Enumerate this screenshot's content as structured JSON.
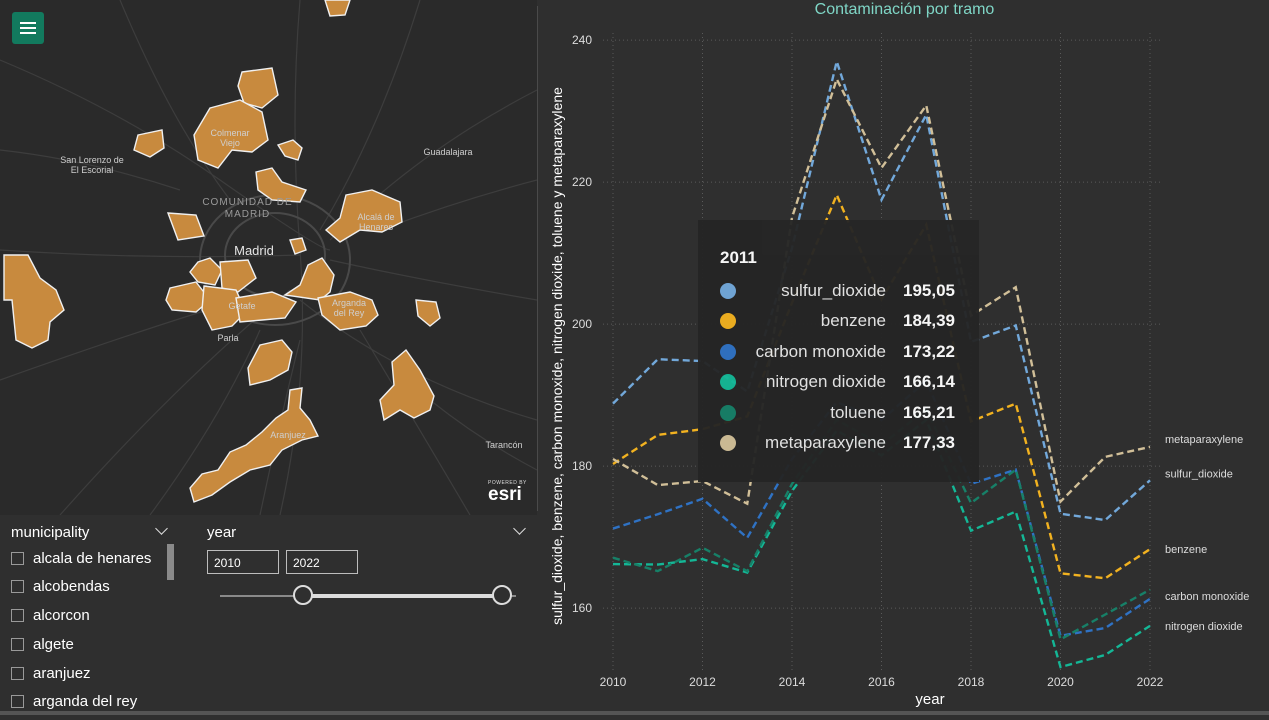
{
  "colors": {
    "accent": "#127a5e",
    "municipality_fill": "#c88a3e",
    "sulfur_dioxide": "#72a8da",
    "benzene": "#f2b220",
    "carbon_monoxide": "#2f72c4",
    "nitrogen_dioxide": "#14b796",
    "toluene": "#178068",
    "metaparaxylene": "#d1bf98"
  },
  "map": {
    "menu_icon": "hamburger-menu-icon",
    "labels": {
      "san_lorenzo": "San Lorenzo de El Escorial",
      "colmenar": "Colmenar Viejo",
      "region": "COMUNIDAD DE MADRID",
      "madrid": "Madrid",
      "guadalajara": "Guadalajara",
      "alcala": "Alcalá de Henares",
      "getafe": "Getafe",
      "parla": "Parla",
      "arganda": "Arganda del Rey",
      "aranjuez": "Aranjuez",
      "tarancon": "Tarancón"
    },
    "attribution": {
      "powered_by": "POWERED BY",
      "brand": "esri"
    }
  },
  "filters": {
    "municipality": {
      "title": "municipality",
      "items": [
        "alcala de henares",
        "alcobendas",
        "alcorcon",
        "algete",
        "aranjuez",
        "arganda del rey"
      ]
    },
    "year": {
      "title": "year",
      "from": "2010",
      "to": "2022",
      "slider_from_fraction": 0,
      "slider_to_fraction": 1
    }
  },
  "chart_title": "Contaminación por tramo",
  "tooltip": {
    "header": "2011",
    "rows": [
      {
        "name": "sulfur_dioxide",
        "value": "195,05",
        "color": "#72a8da"
      },
      {
        "name": "benzene",
        "value": "184,39",
        "color": "#f2b220"
      },
      {
        "name": "carbon monoxide",
        "value": "173,22",
        "color": "#2f72c4"
      },
      {
        "name": "nitrogen dioxide",
        "value": "166,14",
        "color": "#14b796"
      },
      {
        "name": "toluene",
        "value": "165,21",
        "color": "#178068"
      },
      {
        "name": "metaparaxylene",
        "value": "177,33",
        "color": "#d1bf98"
      }
    ]
  },
  "chart_data": {
    "type": "line",
    "title": "Contaminación por tramo",
    "xlabel": "year",
    "ylabel": "sulfur_dioxide, benzene, carbon monoxide, nitrogen dioxide, toluene y metaparaxylene",
    "x": [
      2010,
      2011,
      2012,
      2013,
      2014,
      2015,
      2016,
      2017,
      2018,
      2019,
      2020,
      2021,
      2022
    ],
    "x_ticks": [
      2010,
      2012,
      2014,
      2016,
      2018,
      2020,
      2022
    ],
    "y_ticks": [
      160,
      180,
      200,
      220,
      240
    ],
    "ylim": [
      151,
      241
    ],
    "xlim": [
      2010,
      2022
    ],
    "grid": true,
    "line_style": "dashed",
    "series": [
      {
        "name": "sulfur_dioxide",
        "label": "sulfur_dioxide",
        "color": "#72a8da",
        "values": [
          188.8,
          195.05,
          194.8,
          190.5,
          210.7,
          237,
          217.5,
          229.5,
          197.5,
          199.8,
          173.3,
          172.4,
          178
        ]
      },
      {
        "name": "benzene",
        "label": "benzene",
        "color": "#f2b220",
        "values": [
          180.3,
          184.39,
          185.2,
          187,
          203,
          218.2,
          203.5,
          214,
          186.3,
          188.8,
          164.9,
          164.2,
          168.3
        ]
      },
      {
        "name": "carbon monoxide",
        "label": "carbon monoxide",
        "color": "#2f72c4",
        "values": [
          171.2,
          173.22,
          175.4,
          169.9,
          181,
          189,
          186.5,
          192,
          177.5,
          179.5,
          156.1,
          157.2,
          161.3
        ]
      },
      {
        "name": "nitrogen dioxide",
        "label": "nitrogen dioxide",
        "color": "#14b796",
        "values": [
          166.2,
          166.14,
          166.9,
          165,
          176.5,
          185,
          181.5,
          186.5,
          170.9,
          173.6,
          151.7,
          153.4,
          157.5
        ]
      },
      {
        "name": "toluene",
        "label": "",
        "color": "#178068",
        "values": [
          167.1,
          165.21,
          168.5,
          165.2,
          177.5,
          186.5,
          183,
          188,
          174.8,
          179.5,
          155.6,
          159.1,
          162.6
        ]
      },
      {
        "name": "metaparaxylene",
        "label": "metaparaxylene",
        "color": "#d1bf98",
        "values": [
          181,
          177.33,
          177.9,
          174.7,
          215,
          234.5,
          222,
          230.8,
          201.2,
          205.2,
          175,
          181.3,
          182.7
        ]
      }
    ]
  }
}
